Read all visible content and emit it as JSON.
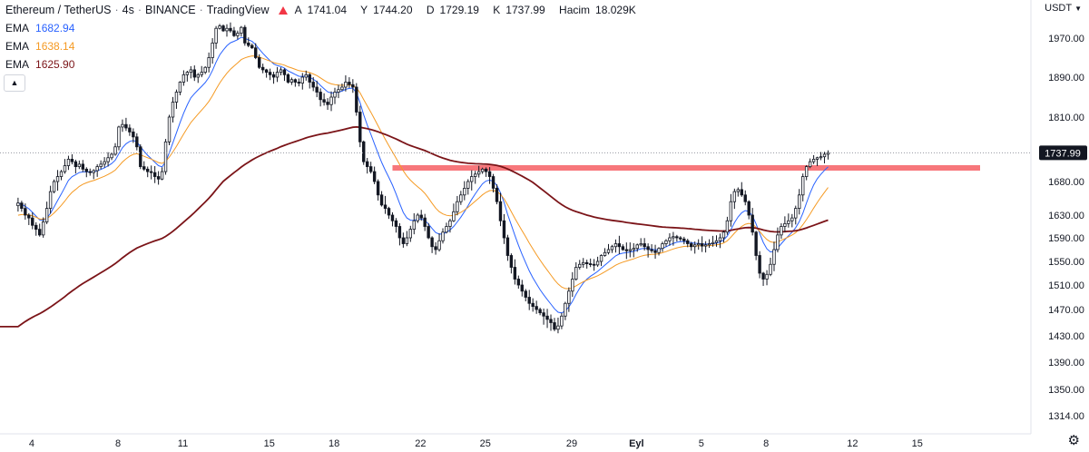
{
  "header": {
    "symbol": "Ethereum / TetherUS",
    "interval": "4s",
    "exchange": "BINANCE",
    "source": "TradingView",
    "ohlc": {
      "open_label": "A",
      "open": "1741.04",
      "high_label": "Y",
      "high": "1744.20",
      "low_label": "D",
      "low": "1729.19",
      "close_label": "K",
      "close": "1737.99",
      "volume_label": "Hacim",
      "volume": "18.029K"
    }
  },
  "indicators": [
    {
      "name": "EMA",
      "value": "1682.94",
      "color": "#2962ff"
    },
    {
      "name": "EMA",
      "value": "1638.14",
      "color": "#f59a23"
    },
    {
      "name": "EMA",
      "value": "1625.90",
      "color": "#7b1418"
    }
  ],
  "collapse_icon": "chevron-up-icon",
  "currency": "USDT",
  "settings_icon": "gear-icon",
  "last_price_label": "1737.99",
  "colors": {
    "bull": "#131722",
    "bear": "#131722",
    "zone": "#f7777b",
    "price_line": "#9598a1"
  },
  "chart_data": {
    "type": "candlestick",
    "y_ticks": [
      "1970.00",
      "1890.00",
      "1810.00",
      "1680.00",
      "1630.00",
      "1590.00",
      "1550.00",
      "1510.00",
      "1470.00",
      "1430.00",
      "1390.00",
      "1350.00",
      "1314.00"
    ],
    "y_tick_values": [
      1970,
      1890,
      1810,
      1680,
      1630,
      1590,
      1550,
      1510,
      1470,
      1430,
      1390,
      1350,
      1314
    ],
    "x_ticks": [
      "4",
      "8",
      "11",
      "15",
      "18",
      "22",
      "25",
      "29",
      "Eyl",
      "5",
      "8",
      "12",
      "15"
    ],
    "x_tick_positions": [
      0,
      24,
      42,
      66,
      84,
      108,
      126,
      150,
      168,
      186,
      204,
      228,
      246
    ],
    "last_price": 1737.99,
    "resistance_zone": {
      "from": 1702,
      "to": 1713
    },
    "ylim": [
      1300,
      2010
    ],
    "xlim": [
      -3,
      270
    ],
    "closes": [
      1648,
      1640,
      1630,
      1625,
      1612,
      1605,
      1595,
      1618,
      1640,
      1665,
      1680,
      1690,
      1700,
      1712,
      1725,
      1720,
      1710,
      1715,
      1705,
      1700,
      1698,
      1702,
      1710,
      1715,
      1720,
      1728,
      1735,
      1750,
      1790,
      1795,
      1788,
      1780,
      1770,
      1750,
      1710,
      1705,
      1700,
      1698,
      1690,
      1685,
      1700,
      1760,
      1810,
      1840,
      1860,
      1880,
      1895,
      1900,
      1905,
      1890,
      1895,
      1900,
      1910,
      1930,
      1960,
      1990,
      1995,
      1985,
      1990,
      1985,
      1975,
      1980,
      1992,
      1960,
      1955,
      1950,
      1930,
      1910,
      1905,
      1900,
      1895,
      1890,
      1900,
      1905,
      1895,
      1880,
      1885,
      1880,
      1878,
      1890,
      1895,
      1880,
      1870,
      1860,
      1845,
      1840,
      1835,
      1850,
      1860,
      1865,
      1870,
      1880,
      1875,
      1870,
      1820,
      1760,
      1720,
      1710,
      1700,
      1680,
      1660,
      1645,
      1640,
      1630,
      1620,
      1610,
      1590,
      1580,
      1590,
      1605,
      1620,
      1630,
      1625,
      1610,
      1590,
      1575,
      1570,
      1585,
      1600,
      1610,
      1620,
      1635,
      1650,
      1660,
      1670,
      1680,
      1690,
      1695,
      1700,
      1705,
      1700,
      1690,
      1670,
      1650,
      1620,
      1590,
      1560,
      1540,
      1520,
      1510,
      1500,
      1490,
      1480,
      1475,
      1470,
      1465,
      1460,
      1455,
      1450,
      1440,
      1445,
      1460,
      1480,
      1500,
      1520,
      1540,
      1545,
      1548,
      1546,
      1545,
      1544,
      1550,
      1560,
      1565,
      1570,
      1575,
      1580,
      1575,
      1570,
      1568,
      1570,
      1572,
      1578,
      1580,
      1575,
      1570,
      1568,
      1565,
      1572,
      1580,
      1585,
      1590,
      1592,
      1590,
      1588,
      1585,
      1580,
      1575,
      1578,
      1580,
      1576,
      1578,
      1580,
      1582,
      1585,
      1590,
      1600,
      1620,
      1650,
      1665,
      1668,
      1660,
      1650,
      1630,
      1600,
      1560,
      1530,
      1520,
      1528,
      1545,
      1570,
      1595,
      1610,
      1615,
      1620,
      1625,
      1640,
      1660,
      1690,
      1710,
      1720,
      1725,
      1728,
      1730,
      1735,
      1738
    ]
  }
}
